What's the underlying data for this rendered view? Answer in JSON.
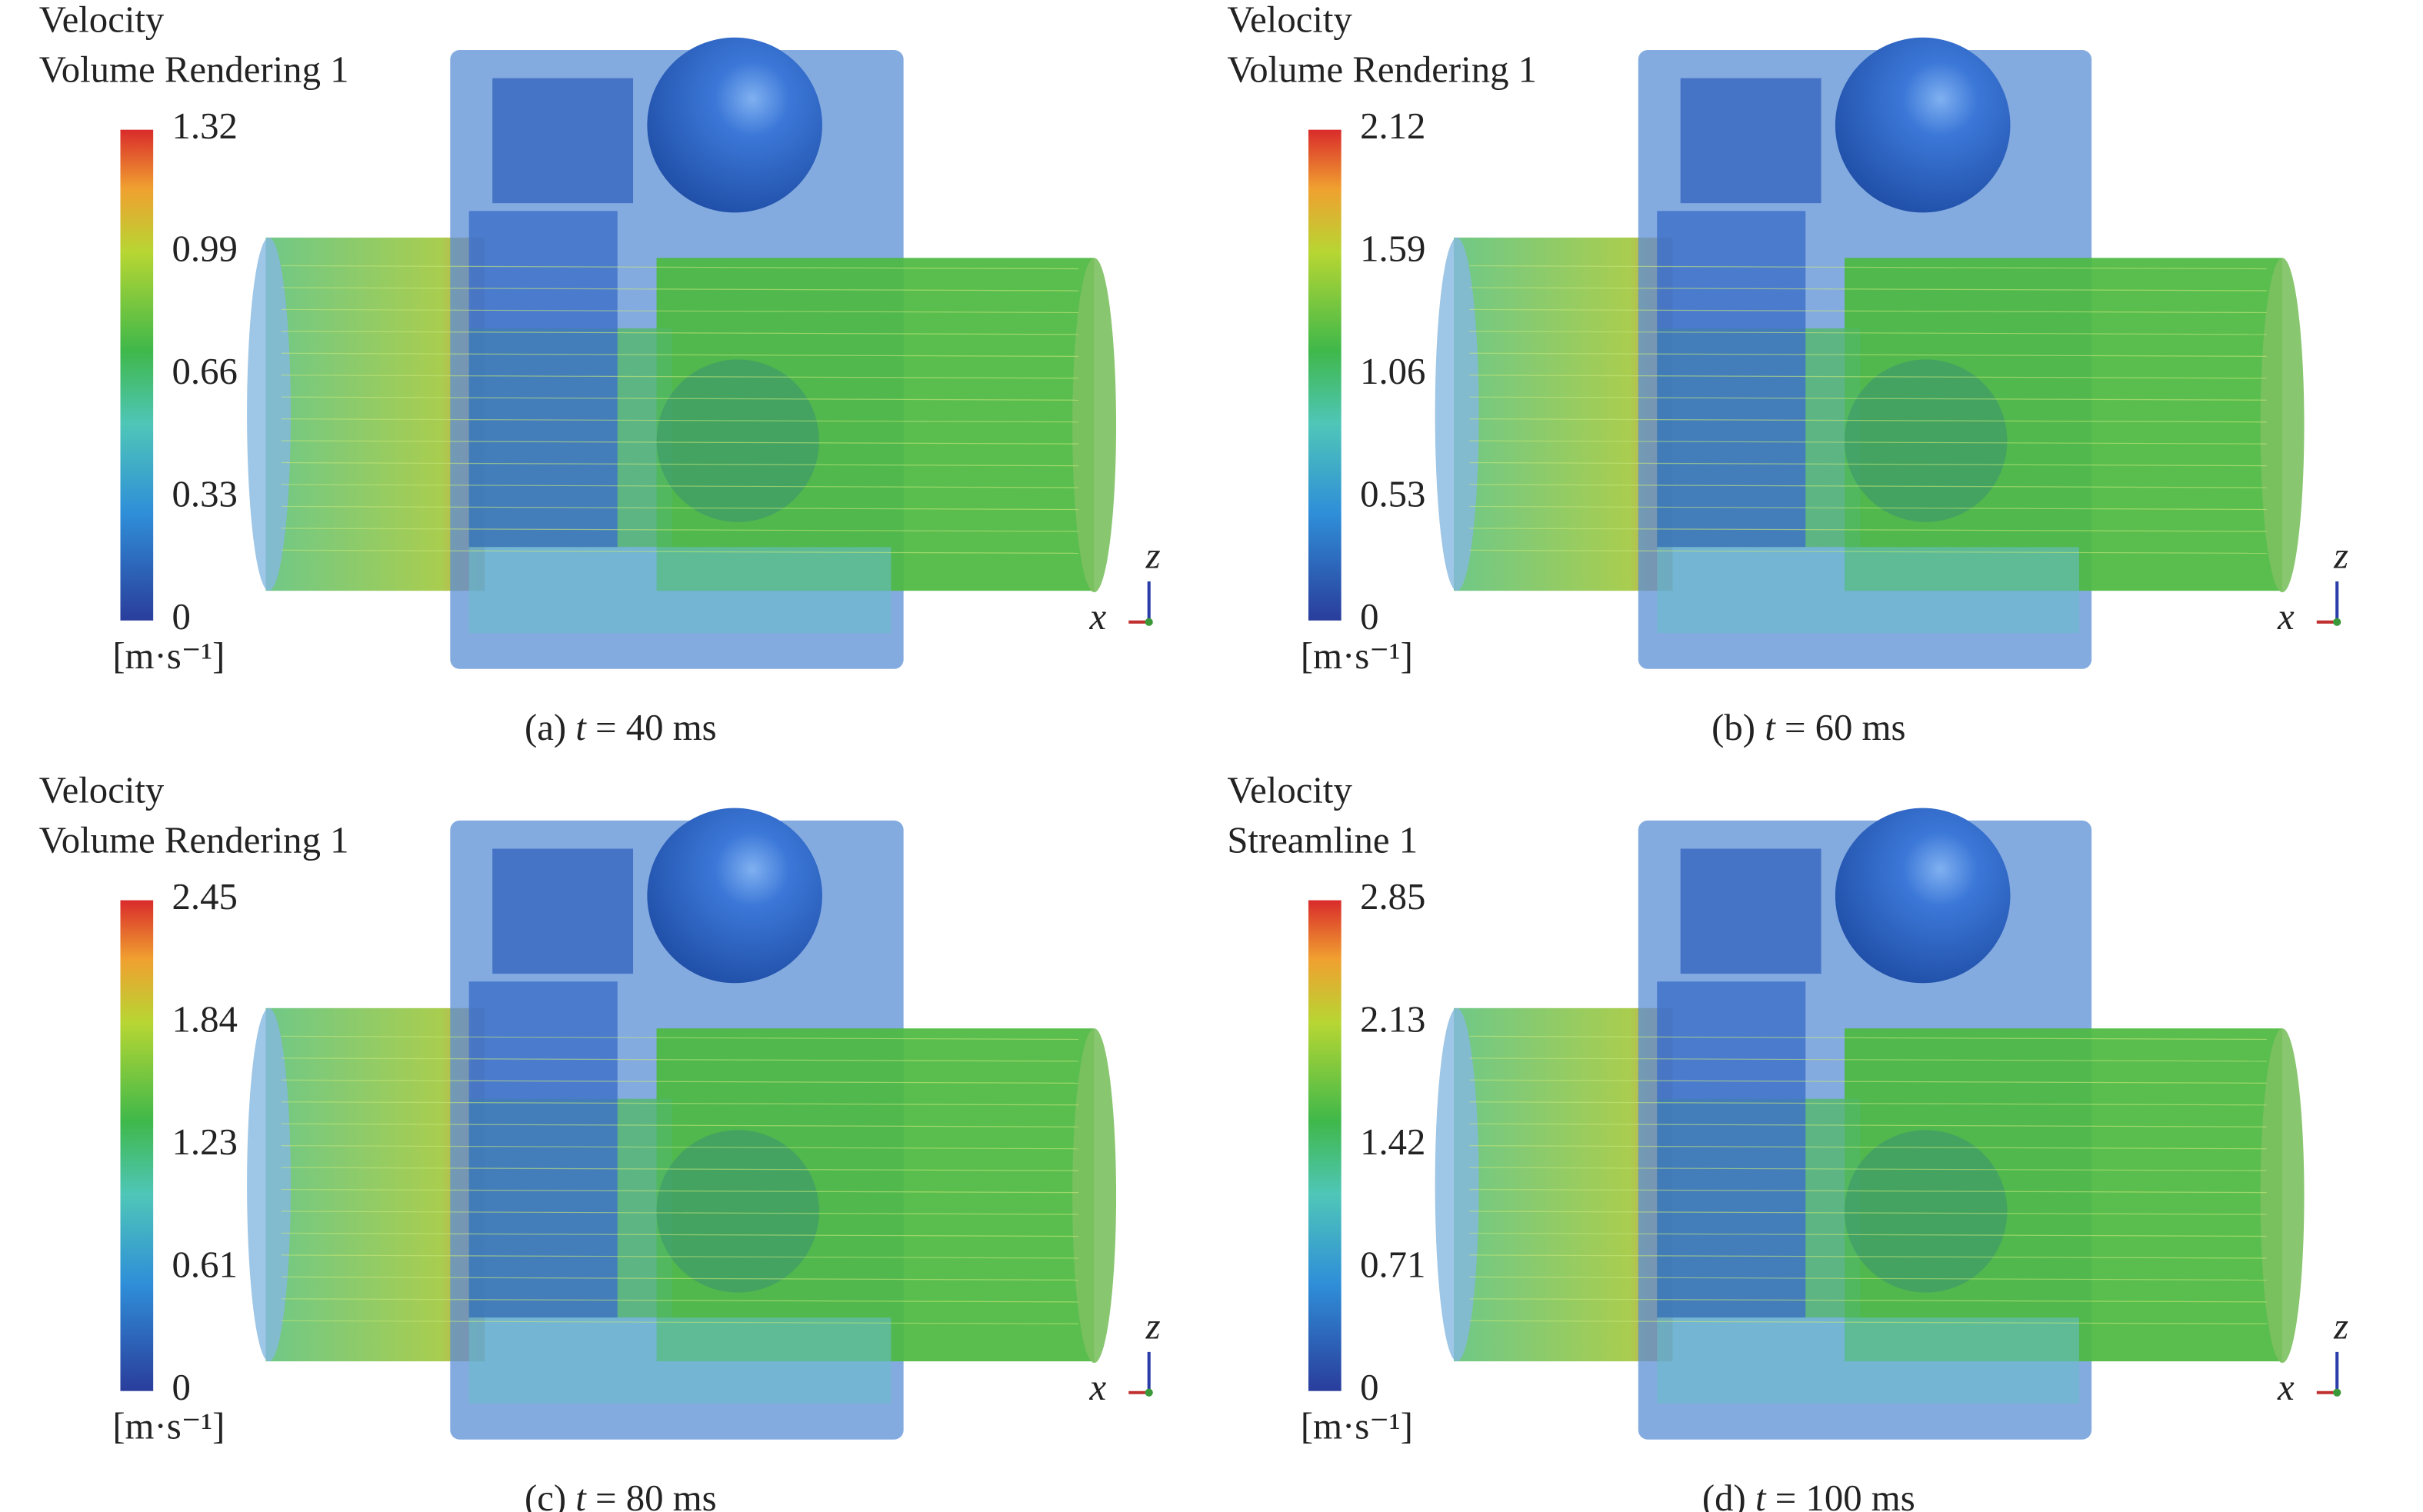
{
  "panels": [
    {
      "title": "Velocity",
      "subtitle": "Volume Rendering 1",
      "colorbar_ticks": [
        1.32,
        0.99,
        0.66,
        0.33,
        0
      ],
      "unit": "[m·s⁻¹]",
      "axis_labels": [
        "x",
        "z"
      ],
      "caption": {
        "label": "(a)",
        "variable": "t",
        "text": "= 40 ms"
      }
    },
    {
      "title": "Velocity",
      "subtitle": "Volume Rendering 1",
      "colorbar_ticks": [
        2.12,
        1.59,
        1.06,
        0.53,
        0
      ],
      "unit": "[m·s⁻¹]",
      "axis_labels": [
        "x",
        "z"
      ],
      "caption": {
        "label": "(b)",
        "variable": "t",
        "text": "= 60 ms"
      }
    },
    {
      "title": "Velocity",
      "subtitle": "Volume Rendering 1",
      "colorbar_ticks": [
        2.45,
        1.84,
        1.23,
        0.61,
        0
      ],
      "unit": "[m·s⁻¹]",
      "axis_labels": [
        "x",
        "z"
      ],
      "caption": {
        "label": "(c)",
        "variable": "t",
        "text": "= 80 ms"
      }
    },
    {
      "title": "Velocity",
      "subtitle": "Streamline 1",
      "colorbar_ticks": [
        2.85,
        2.13,
        1.42,
        0.71,
        0
      ],
      "unit": "[m·s⁻¹]",
      "axis_labels": [
        "x",
        "z"
      ],
      "caption": {
        "label": "(d)",
        "variable": "t",
        "text": "= 100 ms"
      }
    }
  ]
}
